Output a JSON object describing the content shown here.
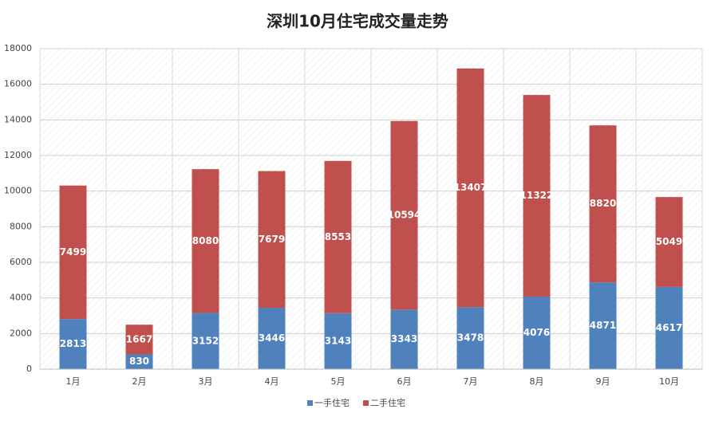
{
  "chart_data": {
    "type": "bar",
    "stacked": true,
    "title": "深圳10月住宅成交量走势",
    "categories": [
      "1月",
      "2月",
      "3月",
      "4月",
      "5月",
      "6月",
      "7月",
      "8月",
      "9月",
      "10月"
    ],
    "series": [
      {
        "name": "一手住宅",
        "color": "#4f81bd",
        "values": [
          2813,
          830,
          3152,
          3446,
          3143,
          3343,
          3478,
          4076,
          4871,
          4617
        ]
      },
      {
        "name": "二手住宅",
        "color": "#c0504d",
        "values": [
          7499,
          1667,
          8080,
          7679,
          8553,
          10594,
          13407,
          11322,
          8820,
          5049
        ]
      }
    ],
    "ylim": [
      0,
      18000
    ],
    "yticks": [
      0,
      2000,
      4000,
      6000,
      8000,
      10000,
      12000,
      14000,
      16000,
      18000
    ],
    "grid": true,
    "legend": "bottom"
  }
}
